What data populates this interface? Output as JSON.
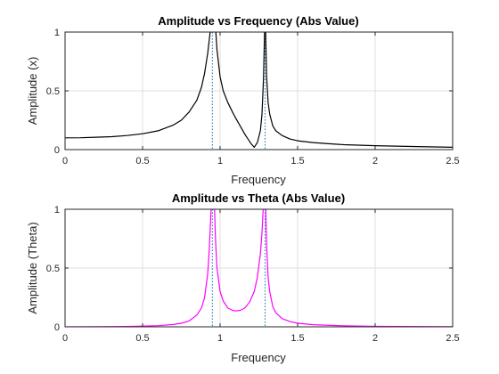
{
  "chart_data": [
    {
      "type": "line",
      "title": "Amplitude vs Frequency (Abs Value)",
      "xlabel": "Frequency",
      "ylabel": "Amplitude (x)",
      "xlim": [
        0,
        2.5
      ],
      "ylim": [
        0,
        1
      ],
      "xticks": [
        "0",
        "0.5",
        "1",
        "1.5",
        "2",
        "2.5"
      ],
      "yticks": [
        "0",
        "0.5",
        "1"
      ],
      "grid": true,
      "series": [
        {
          "color": "#000000",
          "x": [
            0,
            0.1,
            0.2,
            0.3,
            0.4,
            0.5,
            0.6,
            0.7,
            0.75,
            0.8,
            0.85,
            0.88,
            0.9,
            0.92,
            0.93,
            0.94,
            0.95,
            0.96,
            0.97,
            0.98,
            1.0,
            1.02,
            1.05,
            1.08,
            1.1,
            1.13,
            1.16,
            1.2,
            1.22,
            1.24,
            1.26,
            1.27,
            1.28,
            1.285,
            1.29,
            1.3,
            1.31,
            1.32,
            1.34,
            1.36,
            1.4,
            1.45,
            1.5,
            1.6,
            1.7,
            1.8,
            2.0,
            2.2,
            2.5
          ],
          "y": [
            0.1,
            0.101,
            0.105,
            0.11,
            0.12,
            0.135,
            0.16,
            0.21,
            0.25,
            0.32,
            0.42,
            0.53,
            0.65,
            0.82,
            0.93,
            1.05,
            1.2,
            1.2,
            1.05,
            0.85,
            0.62,
            0.5,
            0.4,
            0.32,
            0.27,
            0.2,
            0.13,
            0.05,
            0.02,
            0.06,
            0.16,
            0.3,
            0.6,
            0.9,
            1.2,
            0.62,
            0.4,
            0.3,
            0.2,
            0.16,
            0.12,
            0.09,
            0.075,
            0.06,
            0.05,
            0.042,
            0.033,
            0.027,
            0.02
          ]
        }
      ],
      "reference_lines": [
        {
          "x": 0.95,
          "color": "#0072BD",
          "style": "dotted"
        },
        {
          "x": 1.29,
          "color": "#0072BD",
          "style": "dotted"
        }
      ]
    },
    {
      "type": "line",
      "title": "Amplitude vs Theta (Abs Value)",
      "xlabel": "Frequency",
      "ylabel": "Amplitude (Theta)",
      "xlim": [
        0,
        2.5
      ],
      "ylim": [
        0,
        1
      ],
      "xticks": [
        "0",
        "0.5",
        "1",
        "1.5",
        "2",
        "2.5"
      ],
      "yticks": [
        "0",
        "0.5",
        "1"
      ],
      "grid": true,
      "series": [
        {
          "color": "#FF00FF",
          "x": [
            0,
            0.2,
            0.4,
            0.5,
            0.6,
            0.7,
            0.75,
            0.8,
            0.85,
            0.88,
            0.9,
            0.92,
            0.93,
            0.94,
            0.95,
            0.96,
            0.97,
            0.98,
            1.0,
            1.02,
            1.05,
            1.08,
            1.1,
            1.13,
            1.16,
            1.19,
            1.22,
            1.24,
            1.26,
            1.27,
            1.28,
            1.29,
            1.3,
            1.31,
            1.32,
            1.34,
            1.36,
            1.4,
            1.45,
            1.5,
            1.6,
            1.8,
            2.0,
            2.5
          ],
          "y": [
            0.0,
            0.001,
            0.003,
            0.006,
            0.01,
            0.02,
            0.03,
            0.05,
            0.1,
            0.16,
            0.25,
            0.45,
            0.65,
            0.95,
            1.2,
            1.2,
            0.75,
            0.5,
            0.3,
            0.22,
            0.16,
            0.14,
            0.135,
            0.14,
            0.16,
            0.21,
            0.3,
            0.42,
            0.62,
            0.8,
            1.05,
            1.2,
            0.7,
            0.42,
            0.3,
            0.17,
            0.12,
            0.07,
            0.045,
            0.03,
            0.018,
            0.008,
            0.004,
            0.001
          ]
        }
      ],
      "reference_lines": [
        {
          "x": 0.95,
          "color": "#0072BD",
          "style": "dotted"
        },
        {
          "x": 1.29,
          "color": "#0072BD",
          "style": "dotted"
        }
      ]
    }
  ]
}
